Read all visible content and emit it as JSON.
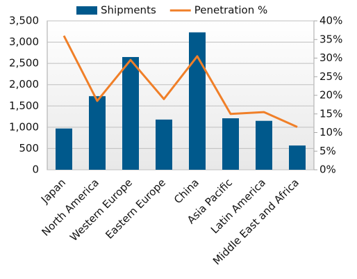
{
  "chart_data": {
    "type": "bar",
    "categories": [
      "Japan",
      "North America",
      "Western Europe",
      "Eastern Europe",
      "China",
      "Asia Pacific",
      "Latin America",
      "Middle East and Africa"
    ],
    "series": [
      {
        "name": "Shipments",
        "color": "#00598c",
        "values": [
          970,
          1730,
          2650,
          1180,
          3230,
          1210,
          1150,
          570
        ]
      },
      {
        "name": "Penetration %",
        "color": "#f07f28",
        "type": "line",
        "axis": "y2",
        "values": [
          36,
          18.5,
          29.5,
          19,
          30.5,
          15,
          15.5,
          11.5
        ]
      }
    ],
    "ylim": [
      0,
      3500
    ],
    "yticks": [
      0,
      500,
      {
        "value": 1000,
        "label": "1,000"
      },
      {
        "value": 1500,
        "label": "1,500"
      },
      {
        "value": 2000,
        "label": "2,000"
      },
      {
        "value": 2500,
        "label": "2,500"
      },
      {
        "value": 3000,
        "label": "3,000"
      },
      {
        "value": 3500,
        "label": "3,500"
      }
    ],
    "y2lim": [
      0,
      40
    ],
    "y2ticks": [
      {
        "value": 0,
        "label": "0%"
      },
      {
        "value": 5,
        "label": "5%"
      },
      {
        "value": 10,
        "label": "10%"
      },
      {
        "value": 15,
        "label": "15%"
      },
      {
        "value": 20,
        "label": "20%"
      },
      {
        "value": 25,
        "label": "25%"
      },
      {
        "value": 30,
        "label": "30%"
      },
      {
        "value": 35,
        "label": "35%"
      },
      {
        "value": 40,
        "label": "40%"
      }
    ],
    "grid": true,
    "legend": "top"
  }
}
